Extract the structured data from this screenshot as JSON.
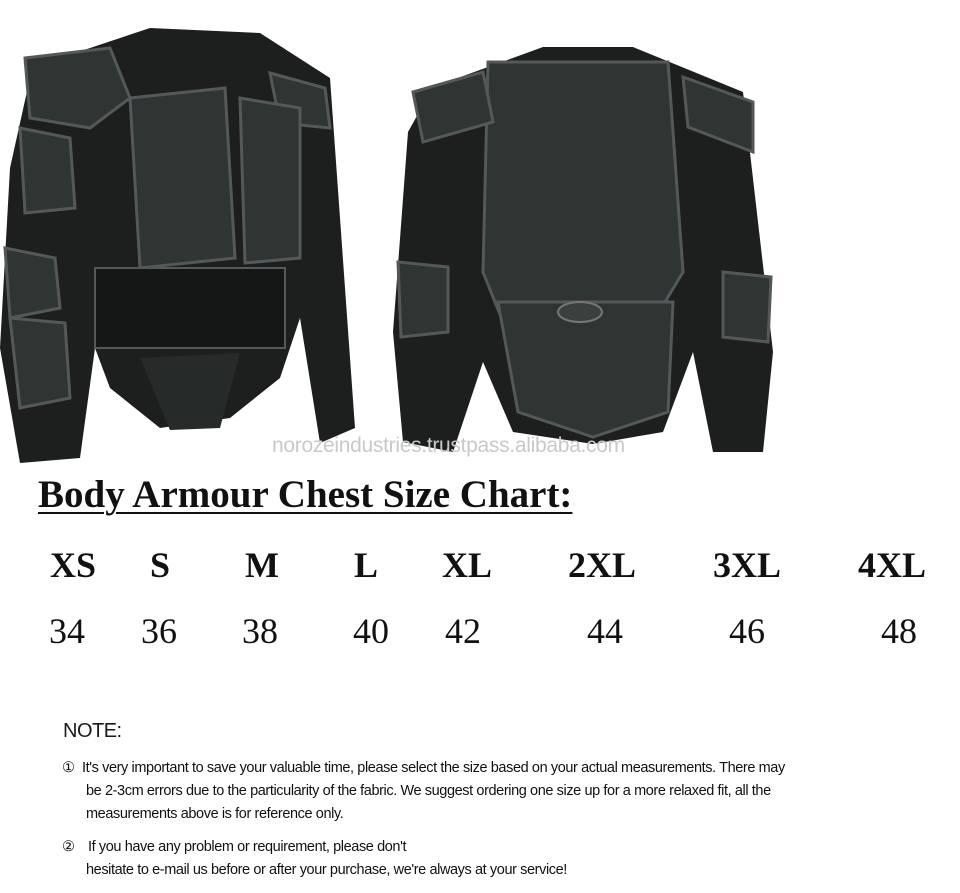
{
  "watermark": "norozeindustries.trustpass.alibaba.com",
  "title": "Body Armour Chest Size Chart:",
  "size_chart": {
    "sizes": [
      "XS",
      "S",
      "M",
      "L",
      "XL",
      "2XL",
      "3XL",
      "4XL"
    ],
    "chest": [
      "34",
      "36",
      "38",
      "40",
      "42",
      "44",
      "46",
      "48"
    ]
  },
  "note": {
    "heading": "NOTE:",
    "items": [
      {
        "marker": "①",
        "lines": [
          "It's very important to save your valuable time, please select the size based on your actual measurements. There may",
          "be 2-3cm errors due to the particularity of the fabric. We suggest ordering one size up for a more relaxed fit, all the",
          "measurements above is for reference only."
        ]
      },
      {
        "marker": "②",
        "lines": [
          "If you have any problem or requirement, please don't",
          "hesitate to e-mail us before or after your purchase, we're always at your service!"
        ]
      }
    ]
  },
  "colors": {
    "jacket": "#1c1f1e",
    "armor": "#2e3532",
    "trim": "#55585a"
  }
}
